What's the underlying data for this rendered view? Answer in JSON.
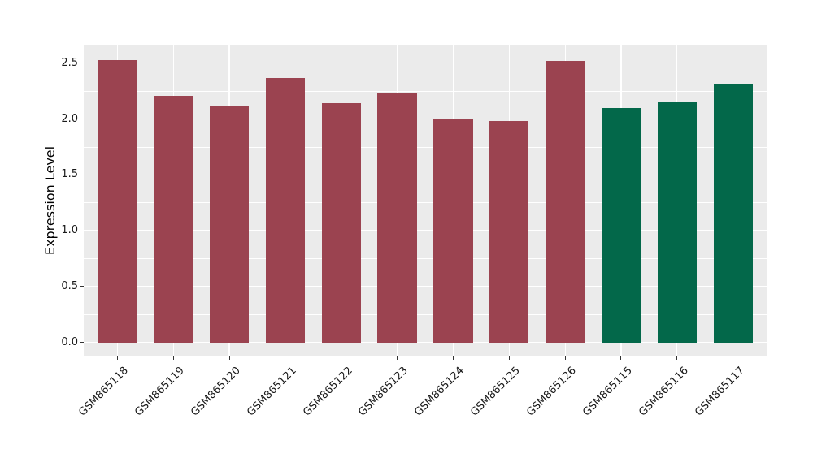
{
  "chart_data": {
    "type": "bar",
    "title": "",
    "xlabel": "",
    "ylabel": "Expression Level",
    "categories": [
      "GSM865118",
      "GSM865119",
      "GSM865120",
      "GSM865121",
      "GSM865122",
      "GSM865123",
      "GSM865124",
      "GSM865125",
      "GSM865126",
      "GSM865115",
      "GSM865116",
      "GSM865117"
    ],
    "values": [
      2.53,
      2.21,
      2.11,
      2.37,
      2.14,
      2.24,
      2.0,
      1.98,
      2.52,
      2.1,
      2.16,
      2.31
    ],
    "groups": [
      "maroon",
      "maroon",
      "maroon",
      "maroon",
      "maroon",
      "maroon",
      "maroon",
      "maroon",
      "maroon",
      "green",
      "green",
      "green"
    ],
    "group_colors": {
      "maroon": "#9B4350",
      "green": "#03684A"
    },
    "y_ticks": [
      "0.0",
      "0.5",
      "1.0",
      "1.5",
      "2.0",
      "2.5"
    ],
    "y_tick_values": [
      0.0,
      0.5,
      1.0,
      1.5,
      2.0,
      2.5
    ],
    "y_minor_values": [
      0.25,
      0.75,
      1.25,
      1.75,
      2.25
    ],
    "ylim": [
      -0.12,
      2.66
    ],
    "bar_width_frac": 0.7,
    "grid": "major+minor",
    "legend_position": "none",
    "panel_bg": "#EBEBEB",
    "grid_color": "#FFFFFF",
    "tick_color": "#333333",
    "axis_text_color": "#1A1A1A"
  }
}
